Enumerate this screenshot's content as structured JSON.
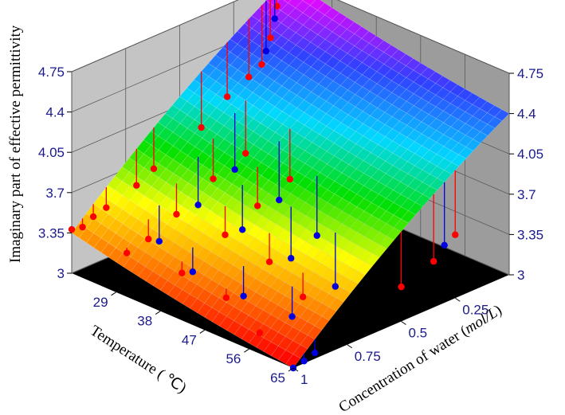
{
  "chart_data": {
    "type": "surface3d",
    "zlabel": "Imaginary part of effective permittivity",
    "xlabel": "Temperature ( ℃)",
    "ylabel_prefix": "Concentration of water (",
    "ylabel_unit": "mol/L",
    "ylabel_suffix": ")",
    "z_ticks": [
      "3",
      "3.35",
      "3.7",
      "4.05",
      "4.4",
      "4.75"
    ],
    "x_ticks": [
      "29",
      "38",
      "47",
      "56",
      "65"
    ],
    "y_ticks": [
      "0.25",
      "0.5",
      "0.75",
      "1"
    ],
    "zlim": [
      3,
      4.75
    ],
    "xlim": [
      20,
      65
    ],
    "ylim": [
      0,
      1
    ],
    "surface_corners": {
      "T20_c0": 4.75,
      "T20_c1": 3.35,
      "T65_c0": 4.4,
      "T65_c1": 3.0
    },
    "colormap": [
      "#ff0000",
      "#ff8000",
      "#ffff00",
      "#00e000",
      "#00d8ff",
      "#3040ff",
      "#ff00ff"
    ],
    "series": [
      {
        "color": "#ff0000",
        "points": [
          {
            "T": 20,
            "c": 1.0,
            "z": 3.38
          },
          {
            "T": 20,
            "c": 0.95,
            "z": 3.36
          },
          {
            "T": 20,
            "c": 0.9,
            "z": 3.41
          },
          {
            "T": 20,
            "c": 0.84,
            "z": 3.44
          },
          {
            "T": 20,
            "c": 0.7,
            "z": 3.52
          },
          {
            "T": 20,
            "c": 0.62,
            "z": 3.6
          },
          {
            "T": 20,
            "c": 0.4,
            "z": 3.78
          },
          {
            "T": 20,
            "c": 0.28,
            "z": 3.95
          },
          {
            "T": 20,
            "c": 0.18,
            "z": 4.04
          },
          {
            "T": 20,
            "c": 0.12,
            "z": 4.1
          },
          {
            "T": 20,
            "c": 0.08,
            "z": 4.3
          },
          {
            "T": 20,
            "c": 0.05,
            "z": 4.55
          },
          {
            "T": 20,
            "c": 0.02,
            "z": 4.7
          },
          {
            "T": 29,
            "c": 0.95,
            "z": 3.3
          },
          {
            "T": 29,
            "c": 0.85,
            "z": 3.34
          },
          {
            "T": 29,
            "c": 0.72,
            "z": 3.45
          },
          {
            "T": 29,
            "c": 0.55,
            "z": 3.62
          },
          {
            "T": 29,
            "c": 0.4,
            "z": 3.72
          },
          {
            "T": 38,
            "c": 0.9,
            "z": 3.25
          },
          {
            "T": 38,
            "c": 0.7,
            "z": 3.42
          },
          {
            "T": 38,
            "c": 0.55,
            "z": 3.55
          },
          {
            "T": 38,
            "c": 0.4,
            "z": 3.66
          },
          {
            "T": 47,
            "c": 0.9,
            "z": 3.2
          },
          {
            "T": 47,
            "c": 0.7,
            "z": 3.35
          },
          {
            "T": 56,
            "c": 0.95,
            "z": 3.1
          },
          {
            "T": 56,
            "c": 0.75,
            "z": 3.25
          },
          {
            "T": 65,
            "c": 0.5,
            "z": 3.3
          },
          {
            "T": 65,
            "c": 0.35,
            "z": 3.4
          },
          {
            "T": 65,
            "c": 0.25,
            "z": 3.55
          }
        ]
      },
      {
        "color": "#0000e0",
        "points": [
          {
            "T": 20,
            "c": 0.0,
            "z": 4.72
          },
          {
            "T": 20,
            "c": 0.03,
            "z": 4.62
          },
          {
            "T": 20,
            "c": 0.06,
            "z": 4.45
          },
          {
            "T": 20,
            "c": 0.1,
            "z": 4.2
          },
          {
            "T": 29,
            "c": 0.8,
            "z": 3.28
          },
          {
            "T": 29,
            "c": 0.62,
            "z": 3.45
          },
          {
            "T": 29,
            "c": 0.45,
            "z": 3.62
          },
          {
            "T": 38,
            "c": 0.85,
            "z": 3.22
          },
          {
            "T": 38,
            "c": 0.62,
            "z": 3.4
          },
          {
            "T": 38,
            "c": 0.45,
            "z": 3.52
          },
          {
            "T": 47,
            "c": 0.82,
            "z": 3.15
          },
          {
            "T": 47,
            "c": 0.6,
            "z": 3.3
          },
          {
            "T": 47,
            "c": 0.48,
            "z": 3.4
          },
          {
            "T": 56,
            "c": 0.8,
            "z": 3.12
          },
          {
            "T": 56,
            "c": 0.6,
            "z": 3.22
          },
          {
            "T": 65,
            "c": 0.9,
            "z": 3.05
          },
          {
            "T": 65,
            "c": 0.95,
            "z": 3.02
          },
          {
            "T": 65,
            "c": 1.0,
            "z": 3.0
          },
          {
            "T": 65,
            "c": 0.3,
            "z": 3.5
          }
        ]
      }
    ]
  }
}
